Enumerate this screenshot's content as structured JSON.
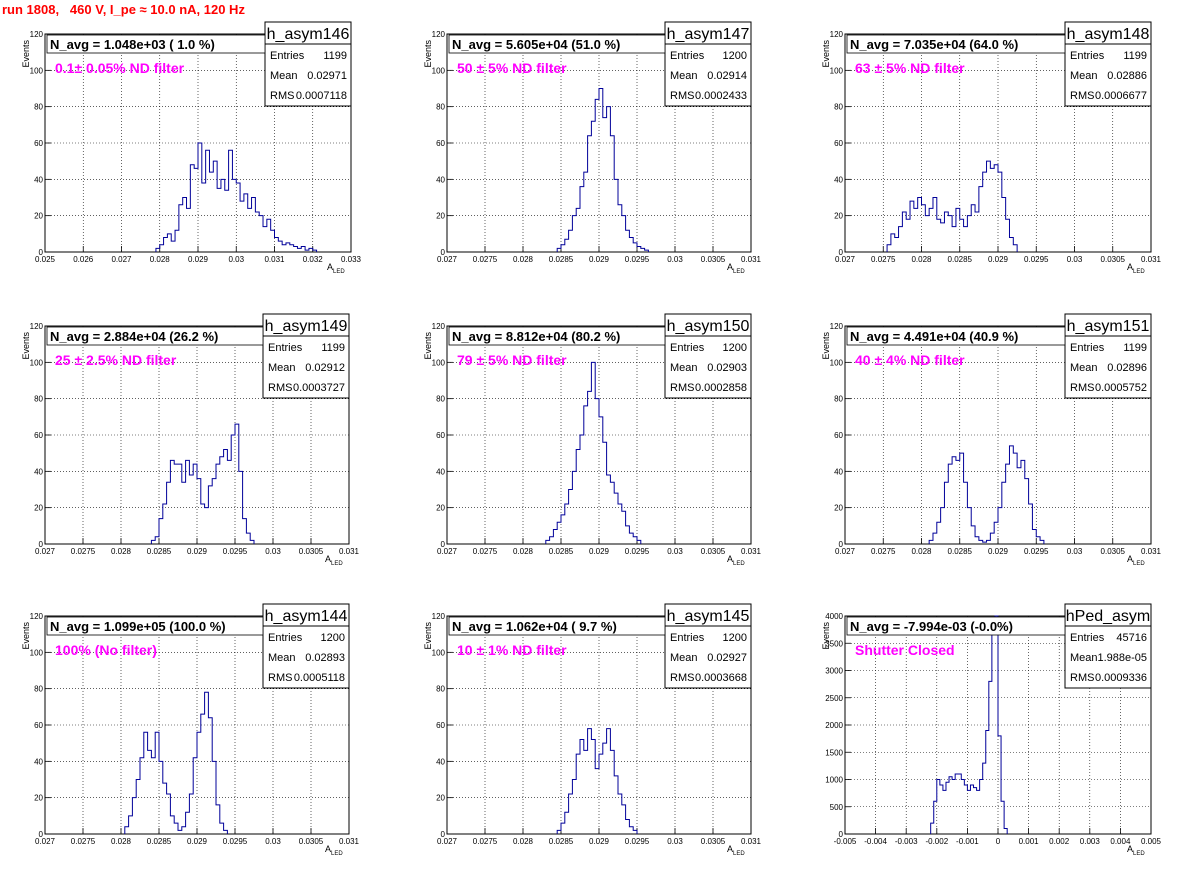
{
  "title": "run 1808,   460 V, I_pe ≈ 10.0 nA, 120 Hz",
  "stat_labels": [
    "Entries",
    "Mean",
    "RMS"
  ],
  "y_axis_label": "Events",
  "x_axis_label": "A",
  "x_axis_sub": "LED",
  "chart_data": [
    {
      "type": "histogram",
      "name": "h_asym146",
      "n_avg": "N_avg = 1.048e+03 ( 1.0 %)",
      "filter": "0.1± 0.05% ND filter",
      "stats": {
        "entries": "1199",
        "mean": "0.02971",
        "rms": "0.0007118"
      },
      "xlim": [
        0.025,
        0.033
      ],
      "ylim": [
        0,
        120
      ],
      "xticks": [
        "0.025",
        "0.026",
        "0.027",
        "0.028",
        "0.029",
        "0.03",
        "0.031",
        "0.032",
        "0.033"
      ],
      "yticks": [
        "0",
        "20",
        "40",
        "60",
        "80",
        "100",
        "120"
      ],
      "bins": {
        "start": 0.0279,
        "width": 0.0001,
        "counts": [
          2,
          4,
          8,
          10,
          6,
          12,
          26,
          30,
          24,
          48,
          46,
          60,
          38,
          56,
          44,
          50,
          35,
          40,
          34,
          56,
          40,
          38,
          28,
          32,
          24,
          30,
          22,
          20,
          14,
          18,
          12,
          8,
          6,
          4,
          5,
          4,
          3,
          2,
          3,
          1,
          2,
          1
        ]
      }
    },
    {
      "type": "histogram",
      "name": "h_asym147",
      "n_avg": "N_avg = 5.605e+04 (51.0 %)",
      "filter": "50 ± 5% ND filter",
      "stats": {
        "entries": "1200",
        "mean": "0.02914",
        "rms": "0.0002433"
      },
      "xlim": [
        0.027,
        0.031
      ],
      "ylim": [
        0,
        120
      ],
      "xticks": [
        "0.027",
        "0.0275",
        "0.028",
        "0.0285",
        "0.029",
        "0.0295",
        "0.03",
        "0.0305",
        "0.031"
      ],
      "yticks": [
        "0",
        "20",
        "40",
        "60",
        "80",
        "100",
        "120"
      ],
      "bins": {
        "start": 0.02845,
        "width": 5e-05,
        "counts": [
          2,
          4,
          7,
          12,
          20,
          24,
          36,
          44,
          64,
          72,
          84,
          90,
          74,
          80,
          64,
          40,
          26,
          20,
          12,
          8,
          5,
          3,
          2,
          1
        ]
      }
    },
    {
      "type": "histogram",
      "name": "h_asym148",
      "n_avg": "N_avg = 7.035e+04 (64.0 %)",
      "filter": "63 ± 5% ND filter",
      "stats": {
        "entries": "1199",
        "mean": "0.02886",
        "rms": "0.0006677"
      },
      "xlim": [
        0.027,
        0.031
      ],
      "ylim": [
        0,
        120
      ],
      "xticks": [
        "0.027",
        "0.0275",
        "0.028",
        "0.0285",
        "0.029",
        "0.0295",
        "0.03",
        "0.0305",
        "0.031"
      ],
      "yticks": [
        "0",
        "20",
        "40",
        "60",
        "80",
        "100",
        "120"
      ],
      "bins": {
        "start": 0.02755,
        "width": 5e-05,
        "counts": [
          4,
          10,
          8,
          14,
          22,
          18,
          28,
          24,
          30,
          26,
          20,
          24,
          30,
          18,
          16,
          22,
          20,
          14,
          24,
          18,
          14,
          20,
          26,
          22,
          36,
          44,
          50,
          46,
          48,
          44,
          30,
          18,
          8,
          4
        ]
      }
    },
    {
      "type": "histogram",
      "name": "h_asym149",
      "n_avg": "N_avg = 2.884e+04 (26.2 %)",
      "filter": "25 ± 2.5% ND filter",
      "stats": {
        "entries": "1199",
        "mean": "0.02912",
        "rms": "0.0003727"
      },
      "xlim": [
        0.027,
        0.031
      ],
      "ylim": [
        0,
        120
      ],
      "xticks": [
        "0.027",
        "0.0275",
        "0.028",
        "0.0285",
        "0.029",
        "0.0295",
        "0.03",
        "0.0305",
        "0.031"
      ],
      "yticks": [
        "0",
        "20",
        "40",
        "60",
        "80",
        "100",
        "120"
      ],
      "bins": {
        "start": 0.0284,
        "width": 5e-05,
        "counts": [
          2,
          4,
          14,
          22,
          34,
          46,
          44,
          44,
          34,
          46,
          38,
          44,
          36,
          22,
          20,
          32,
          36,
          44,
          48,
          52,
          46,
          60,
          66,
          40,
          14,
          6,
          2
        ]
      }
    },
    {
      "type": "histogram",
      "name": "h_asym150",
      "n_avg": "N_avg = 8.812e+04 (80.2 %)",
      "filter": "79 ± 5% ND filter",
      "stats": {
        "entries": "1200",
        "mean": "0.02903",
        "rms": "0.0002858"
      },
      "xlim": [
        0.027,
        0.031
      ],
      "ylim": [
        0,
        120
      ],
      "xticks": [
        "0.027",
        "0.0275",
        "0.028",
        "0.0285",
        "0.029",
        "0.0295",
        "0.03",
        "0.0305",
        "0.031"
      ],
      "yticks": [
        "0",
        "20",
        "40",
        "60",
        "80",
        "100",
        "120"
      ],
      "bins": {
        "start": 0.0283,
        "width": 5e-05,
        "counts": [
          2,
          4,
          8,
          12,
          16,
          22,
          30,
          40,
          52,
          60,
          76,
          84,
          100,
          80,
          70,
          56,
          38,
          34,
          28,
          22,
          18,
          10,
          6,
          4,
          2
        ]
      }
    },
    {
      "type": "histogram",
      "name": "h_asym151",
      "n_avg": "N_avg = 4.491e+04 (40.9 %)",
      "filter": "40 ± 4% ND filter",
      "stats": {
        "entries": "1199",
        "mean": "0.02896",
        "rms": "0.0005752"
      },
      "xlim": [
        0.027,
        0.031
      ],
      "ylim": [
        0,
        120
      ],
      "xticks": [
        "0.027",
        "0.0275",
        "0.028",
        "0.0285",
        "0.029",
        "0.0295",
        "0.03",
        "0.0305",
        "0.031"
      ],
      "yticks": [
        "0",
        "20",
        "40",
        "60",
        "80",
        "100",
        "120"
      ],
      "bins": {
        "start": 0.0281,
        "width": 5e-05,
        "counts": [
          2,
          6,
          12,
          20,
          34,
          44,
          48,
          46,
          50,
          34,
          20,
          10,
          4,
          2,
          1,
          2,
          6,
          12,
          20,
          34,
          44,
          54,
          50,
          42,
          46,
          36,
          22,
          8,
          4,
          2
        ]
      }
    },
    {
      "type": "histogram",
      "name": "h_asym144",
      "n_avg": "N_avg = 1.099e+05 (100.0 %)",
      "filter": "100% (No filter)",
      "stats": {
        "entries": "1200",
        "mean": "0.02893",
        "rms": "0.0005118"
      },
      "xlim": [
        0.027,
        0.031
      ],
      "ylim": [
        0,
        120
      ],
      "xticks": [
        "0.027",
        "0.0275",
        "0.028",
        "0.0285",
        "0.029",
        "0.0295",
        "0.03",
        "0.0305",
        "0.031"
      ],
      "yticks": [
        "0",
        "20",
        "40",
        "60",
        "80",
        "100",
        "120"
      ],
      "bins": {
        "start": 0.02805,
        "width": 5e-05,
        "counts": [
          4,
          10,
          20,
          30,
          42,
          56,
          46,
          42,
          56,
          40,
          28,
          22,
          10,
          6,
          2,
          4,
          12,
          22,
          42,
          56,
          66,
          78,
          64,
          40,
          16,
          6,
          2
        ]
      }
    },
    {
      "type": "histogram",
      "name": "h_asym145",
      "n_avg": "N_avg = 1.062e+04 ( 9.7 %)",
      "filter": "10 ± 1% ND filter",
      "stats": {
        "entries": "1200",
        "mean": "0.02927",
        "rms": "0.0003668"
      },
      "xlim": [
        0.027,
        0.031
      ],
      "ylim": [
        0,
        120
      ],
      "xticks": [
        "0.027",
        "0.0275",
        "0.028",
        "0.0285",
        "0.029",
        "0.0295",
        "0.03",
        "0.0305",
        "0.031"
      ],
      "yticks": [
        "0",
        "20",
        "40",
        "60",
        "80",
        "100",
        "120"
      ],
      "bins": {
        "start": 0.02845,
        "width": 5e-05,
        "counts": [
          2,
          6,
          12,
          22,
          30,
          44,
          52,
          46,
          58,
          52,
          36,
          44,
          50,
          58,
          46,
          32,
          22,
          16,
          8,
          4,
          2
        ]
      }
    },
    {
      "type": "histogram",
      "name": "hPed_asym",
      "n_avg": "N_avg = -7.994e-03 (-0.0%)",
      "filter": "Shutter Closed",
      "stats": {
        "entries": "45716",
        "mean": "1.988e-05",
        "rms": "0.0009336"
      },
      "xlim": [
        -0.005,
        0.005
      ],
      "ylim": [
        0,
        4000
      ],
      "xticks": [
        "-0.005",
        "-0.004",
        "-0.003",
        "-0.002",
        "-0.001",
        "0",
        "0.001",
        "0.002",
        "0.003",
        "0.004",
        "0.005"
      ],
      "yticks": [
        "0",
        "500",
        "1000",
        "1500",
        "2000",
        "2500",
        "3000",
        "3500",
        "4000"
      ],
      "bins": {
        "start": -0.0022,
        "width": 0.0001,
        "counts": [
          200,
          600,
          1000,
          900,
          800,
          950,
          1050,
          1000,
          1100,
          1100,
          1000,
          900,
          800,
          900,
          850,
          800,
          1000,
          1300,
          1900,
          2800,
          3900,
          4000,
          1800,
          600,
          100
        ]
      }
    }
  ]
}
